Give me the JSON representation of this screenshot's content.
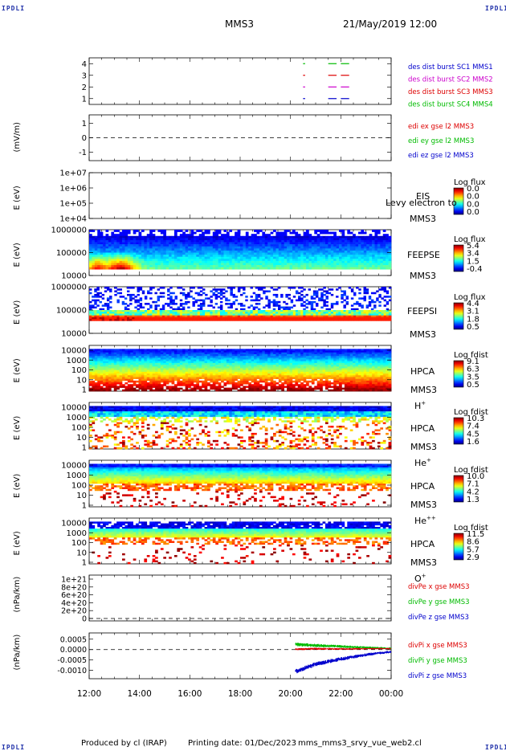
{
  "header": {
    "corner_label": "IPDLI",
    "mission": "MMS3",
    "date_time": "21/May/2019 12:00"
  },
  "footer": {
    "produced_by": "Produced by cl (IRAP)",
    "printing_date": "Printing date: 01/Dec/2023",
    "file_name": "mms_mms3_srvy_vue_web2.cl"
  },
  "x_axis": {
    "tick_labels": [
      "12:00",
      "14:00",
      "16:00",
      "18:00",
      "20:00",
      "22:00",
      "00:00"
    ]
  },
  "colors": {
    "red": "#dd0000",
    "green": "#00bb00",
    "blue": "#0000cc",
    "magenta": "#cc00cc"
  },
  "chart_data": [
    {
      "type": "line",
      "panel": "des-dist-burst",
      "y_ticks": [
        "1",
        "2",
        "3",
        "4"
      ],
      "ylim": [
        0.5,
        4.5
      ],
      "legend": [
        "des dist burst SC1 MMS1",
        "des dist burst SC2 MMS2",
        "des dist burst SC3 MMS3",
        "des dist burst SC4 MMS4"
      ],
      "series_colors": [
        "#0000cc",
        "#cc00cc",
        "#dd0000",
        "#00bb00"
      ],
      "bursts": [
        {
          "sc": 4,
          "x": [
            [
              20.5,
              20.55
            ],
            [
              21.5,
              21.8
            ],
            [
              22.0,
              22.3
            ]
          ]
        },
        {
          "sc": 3,
          "x": [
            [
              20.5,
              20.55
            ],
            [
              21.5,
              21.8
            ],
            [
              22.0,
              22.3
            ]
          ]
        },
        {
          "sc": 2,
          "x": [
            [
              20.5,
              20.55
            ],
            [
              21.5,
              21.8
            ],
            [
              22.0,
              22.3
            ]
          ]
        },
        {
          "sc": 1,
          "x": [
            [
              20.5,
              20.55
            ],
            [
              21.5,
              21.8
            ],
            [
              22.0,
              22.3
            ]
          ]
        }
      ]
    },
    {
      "type": "line",
      "panel": "edi",
      "ylabel": "(mV/m)",
      "y_ticks": [
        "1",
        "0",
        "-1"
      ],
      "ylim": [
        -1.6,
        1.6
      ],
      "legend": [
        "edi ex gse l2 MMS3",
        "edi ey gse l2 MMS3",
        "edi ez gse l2 MMS3"
      ],
      "series_colors": [
        "#dd0000",
        "#00bb00",
        "#0000cc"
      ]
    },
    {
      "type": "heatmap",
      "panel": "EIS",
      "ylabel": "E (eV)",
      "y_ticks": [
        "1e+07",
        "1e+06",
        "1e+05",
        "1e+04"
      ],
      "instrument": "EIS",
      "spacecraft": "MMS3",
      "overlay_text": "Levy electron to",
      "colorbar_title": "Log flux",
      "colorbar_ticks": [
        "0.0",
        "0.0",
        "0.0",
        "0.0"
      ]
    },
    {
      "type": "heatmap",
      "panel": "FEEPSE",
      "ylabel": "E (eV)",
      "y_ticks": [
        "1000000",
        "100000",
        "10000"
      ],
      "instrument": "FEEPSE",
      "spacecraft": "MMS3",
      "colorbar_title": "Log flux",
      "colorbar_ticks": [
        "5.4",
        "3.4",
        "1.5",
        "-0.4"
      ]
    },
    {
      "type": "heatmap",
      "panel": "FEEPSI",
      "ylabel": "E (eV)",
      "y_ticks": [
        "1000000",
        "100000",
        "10000"
      ],
      "instrument": "FEEPSI",
      "spacecraft": "MMS3",
      "colorbar_title": "Log flux",
      "colorbar_ticks": [
        "4.4",
        "3.1",
        "1.8",
        "0.5"
      ]
    },
    {
      "type": "heatmap",
      "panel": "HPCA-H",
      "ylabel": "E (eV)",
      "y_ticks": [
        "10000",
        "1000",
        "100",
        "10",
        "1"
      ],
      "instrument": "HPCA",
      "spacecraft": "MMS3",
      "species": "H",
      "species_sup": "+",
      "colorbar_title": "Log fdist",
      "colorbar_ticks": [
        "9.1",
        "6.3",
        "3.5",
        "0.5"
      ]
    },
    {
      "type": "heatmap",
      "panel": "HPCA-He+",
      "ylabel": "E (eV)",
      "y_ticks": [
        "10000",
        "1000",
        "100",
        "10",
        "1"
      ],
      "instrument": "HPCA",
      "spacecraft": "MMS3",
      "species": "He",
      "species_sup": "+",
      "colorbar_title": "Log fdist",
      "colorbar_ticks": [
        "10.3",
        "7.4",
        "4.5",
        "1.6"
      ]
    },
    {
      "type": "heatmap",
      "panel": "HPCA-He++",
      "ylabel": "E (eV)",
      "y_ticks": [
        "10000",
        "1000",
        "100",
        "10",
        "1"
      ],
      "instrument": "HPCA",
      "spacecraft": "MMS3",
      "species": "He",
      "species_sup": "++",
      "colorbar_title": "Log fdist",
      "colorbar_ticks": [
        "10.0",
        "7.1",
        "4.2",
        "1.3"
      ]
    },
    {
      "type": "heatmap",
      "panel": "HPCA-O+",
      "ylabel": "E (eV)",
      "y_ticks": [
        "10000",
        "1000",
        "100",
        "10",
        "1"
      ],
      "instrument": "HPCA",
      "spacecraft": "MMS3",
      "species": "O",
      "species_sup": "+",
      "colorbar_title": "Log fdist",
      "colorbar_ticks": [
        "11.5",
        "8.6",
        "5.7",
        "2.9"
      ]
    },
    {
      "type": "line",
      "panel": "divPe",
      "ylabel": "(nPa/km)",
      "y_ticks": [
        "1e+21",
        "8e+20",
        "6e+20",
        "4e+20",
        "2e+20",
        "0"
      ],
      "ylim": [
        0,
        1e+21
      ],
      "legend": [
        "divPe x gse MMS3",
        "divPe y gse MMS3",
        "divPe z gse MMS3"
      ],
      "series_colors": [
        "#dd0000",
        "#00bb00",
        "#0000cc"
      ]
    },
    {
      "type": "line",
      "panel": "divPi",
      "ylabel": "(nPa/km)",
      "y_ticks": [
        "0.0005",
        "0.0000",
        "-0.0005",
        "-0.0010"
      ],
      "ylim": [
        -0.0014,
        0.0008
      ],
      "legend": [
        "divPi x gse MMS3",
        "divPi y gse MMS3",
        "divPi z gse MMS3"
      ],
      "series_colors": [
        "#dd0000",
        "#00bb00",
        "#0000cc"
      ],
      "series": [
        {
          "name": "divPi x gse MMS3",
          "x": [
            20.2,
            21,
            22,
            23,
            24
          ],
          "y": [
            2e-05,
            4e-05,
            3e-05,
            4e-05,
            5e-05
          ]
        },
        {
          "name": "divPi y gse MMS3",
          "x": [
            20.2,
            21,
            22,
            23,
            24
          ],
          "y": [
            0.00025,
            0.0002,
            0.00015,
            0.0001,
            6e-05
          ]
        },
        {
          "name": "divPi z gse MMS3",
          "x": [
            20.2,
            21,
            22,
            23,
            24
          ],
          "y": [
            -0.00105,
            -0.0007,
            -0.00045,
            -0.00025,
            -0.0001
          ]
        }
      ]
    }
  ]
}
